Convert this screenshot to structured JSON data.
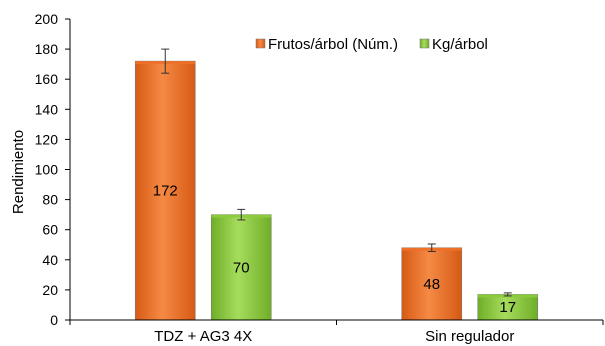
{
  "chart_data": {
    "type": "bar",
    "categories": [
      "TDZ + AG3 4X",
      "Sin regulador"
    ],
    "series": [
      {
        "name": "Frutos/árbol (Núm.)",
        "values": [
          172,
          48
        ],
        "errors": [
          8,
          2.5
        ],
        "color": "#F07028"
      },
      {
        "name": "Kg/árbol",
        "values": [
          70,
          17
        ],
        "errors": [
          3.5,
          1
        ],
        "color": "#8CCB3C"
      }
    ],
    "data_labels": [
      "172",
      "70",
      "48",
      "17"
    ],
    "ylabel": "Rendimiento",
    "xlabel": "",
    "ylim": [
      0,
      200
    ],
    "yticks": [
      0,
      20,
      40,
      60,
      80,
      100,
      120,
      140,
      160,
      180,
      200
    ],
    "grid": false,
    "legend_position": "top-right"
  }
}
